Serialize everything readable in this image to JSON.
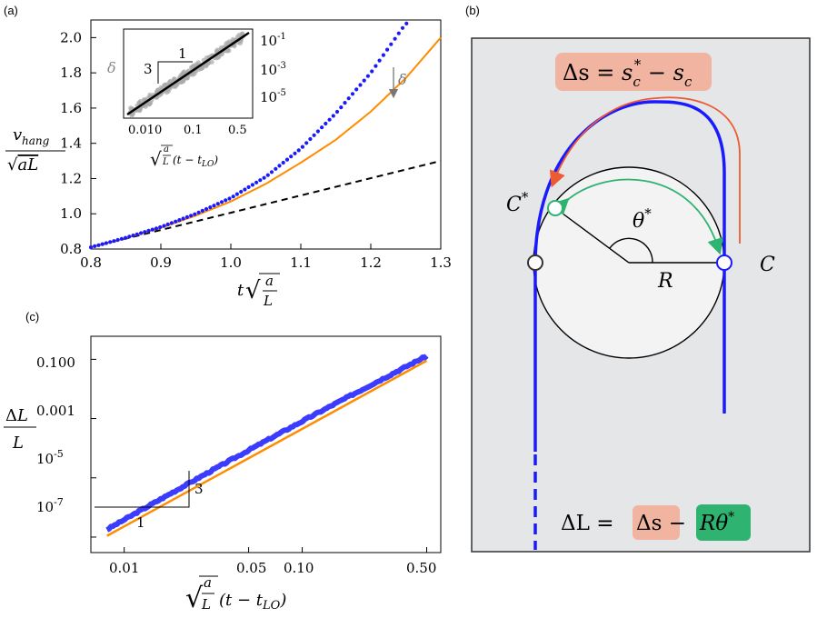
{
  "panel_labels": {
    "a": "(a)",
    "b": "(b)",
    "c": "(c)"
  },
  "colors": {
    "dots": "#1a1aff",
    "orange": "#ff8c00",
    "black": "#000000",
    "grey_data": "#aaaaaa",
    "box_bg": "#e5e6e8",
    "pink": "#f0b4a0",
    "green": "#2eb371",
    "red_arrow": "#ee5a32",
    "green_arrow": "#2eb371"
  },
  "chart_data": [
    {
      "type": "line",
      "id": "panel-a",
      "xlim": [
        0.8,
        1.3
      ],
      "ylim": [
        0.8,
        2.1
      ],
      "xticks": [
        "0.8",
        "0.9",
        "1.0",
        "1.1",
        "1.2",
        "1.3"
      ],
      "yticks": [
        "0.8",
        "1.0",
        "1.2",
        "1.4",
        "1.6",
        "1.8",
        "2.0"
      ],
      "xlabel": "t√(a/L)",
      "ylabel": "v_hang / √(aL)",
      "annotation": "δ",
      "series": [
        {
          "style": "dotted-blue",
          "x": [
            0.8,
            0.85,
            0.9,
            0.95,
            1.0,
            1.05,
            1.1,
            1.15,
            1.2,
            1.25
          ],
          "y": [
            0.81,
            0.864,
            0.925,
            1.0,
            1.09,
            1.21,
            1.37,
            1.57,
            1.8,
            2.08
          ]
        },
        {
          "style": "orange-solid",
          "x": [
            0.8,
            0.85,
            0.9,
            0.95,
            1.0,
            1.05,
            1.1,
            1.15,
            1.2,
            1.25,
            1.3
          ],
          "y": [
            0.81,
            0.862,
            0.92,
            0.99,
            1.07,
            1.17,
            1.29,
            1.42,
            1.58,
            1.77,
            2.0
          ]
        },
        {
          "style": "black-dashed",
          "x": [
            0.8,
            1.3
          ],
          "y": [
            0.81,
            1.3
          ]
        }
      ]
    },
    {
      "type": "scatter",
      "id": "inset",
      "scale": "log-log",
      "xticks": [
        "0.010",
        "0.1",
        "0.5"
      ],
      "yticks": [
        "10^-1",
        "10^-3",
        "10^-5"
      ],
      "ylabel": "δ",
      "xlabel": "√(a/L)(t − t_LO)",
      "slope_triangle": {
        "run": "1",
        "rise": "3"
      },
      "x": [
        0.005,
        0.6
      ],
      "y": [
        3e-06,
        0.3
      ]
    },
    {
      "type": "line",
      "id": "panel-c",
      "scale": "log-log",
      "xticks": [
        "0.01",
        "0.05",
        "0.10",
        "0.50"
      ],
      "yticks": [
        "0.100",
        "0.001",
        "10^-5",
        "10^-7"
      ],
      "xlabel": "√(a/L)(t − t_LO)",
      "ylabel": "ΔL / L",
      "slope_triangle": {
        "run": "1",
        "rise": "3"
      },
      "series": [
        {
          "style": "blue-thick",
          "x": [
            0.008,
            0.5
          ],
          "y": [
            1.8e-07,
            0.13
          ]
        },
        {
          "style": "orange",
          "x": [
            0.008,
            0.5
          ],
          "y": [
            1.1e-07,
            0.09
          ]
        }
      ]
    }
  ],
  "diagram": {
    "formula_top": {
      "lhs": "Δs = ",
      "s_c_star": "s",
      "sub_c": "c",
      "sup_star": "*",
      "minus": " − ",
      "s_c": "s",
      "sub_c2": "c"
    },
    "label_C_star": "C",
    "label_C_star_sup": "*",
    "label_theta": "θ",
    "label_theta_sup": "*",
    "label_R": "R",
    "label_C": "C",
    "formula_bottom": {
      "lhs": "ΔL = ",
      "ds": "Δs",
      "minus": " − ",
      "rtheta": "Rθ",
      "rtheta_sup": "*"
    }
  }
}
